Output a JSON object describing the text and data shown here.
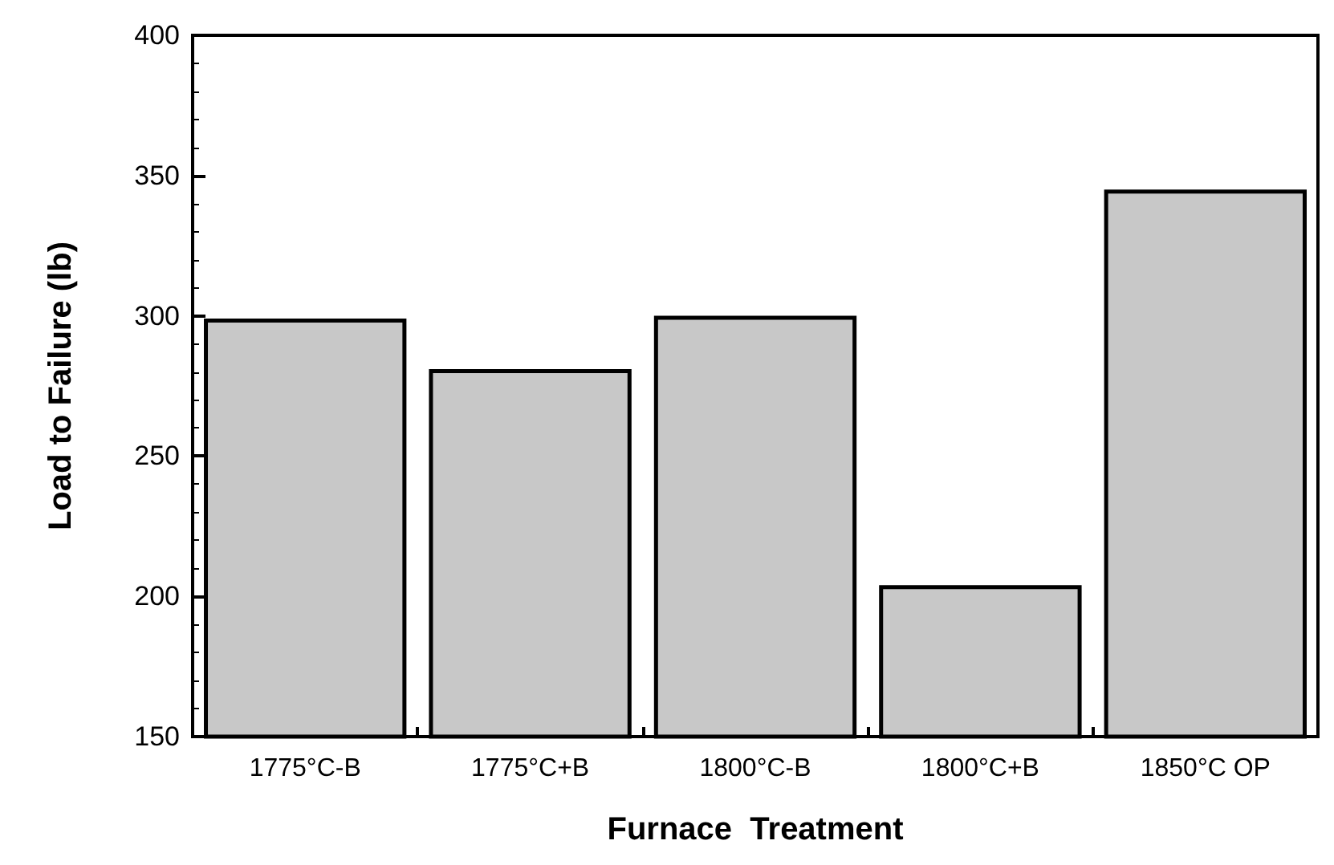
{
  "chart_data": {
    "type": "bar",
    "xlabel": "Furnace  Treatment",
    "ylabel": "Load to Failure (lb)",
    "categories": [
      "1775°C-B",
      "1775°C+B",
      "1800°C-B",
      "1800°C+B",
      "1850°C OP"
    ],
    "values": [
      299,
      281,
      300,
      204,
      345
    ],
    "color": "#c8c8c8",
    "ylim": [
      150,
      400
    ],
    "yticks": [
      150,
      200,
      250,
      300,
      350,
      400
    ],
    "grid": false
  }
}
